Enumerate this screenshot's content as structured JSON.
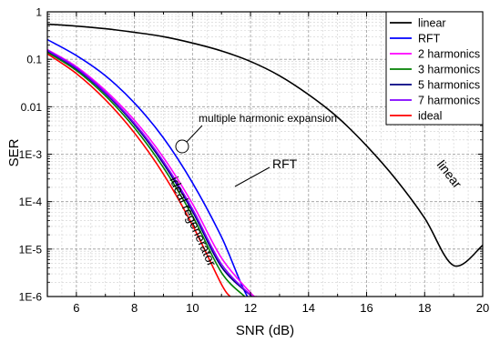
{
  "chart_data": {
    "type": "line",
    "xlabel": "SNR  (dB)",
    "ylabel": "SER",
    "xlim": [
      5,
      20
    ],
    "ylim": [
      1e-06,
      1
    ],
    "yscale": "log",
    "grid": true,
    "legend_position": "top-right",
    "x_ticks": [
      6,
      8,
      10,
      12,
      14,
      16,
      18,
      20
    ],
    "x_tick_labels": [
      "6",
      "8",
      "10",
      "12",
      "14",
      "16",
      "18",
      "20"
    ],
    "y_ticks": [
      1,
      0.1,
      0.01,
      0.001,
      0.0001,
      1e-05,
      1e-06
    ],
    "y_tick_labels": [
      "1",
      "0.1",
      "0.01",
      "1E-3",
      "1E-4",
      "1E-5",
      "1E-6"
    ],
    "series": [
      {
        "name": "linear",
        "color": "#000000",
        "x": [
          5,
          6,
          7,
          8,
          9,
          10,
          11,
          12,
          13,
          14,
          15,
          16,
          17,
          18,
          19,
          20
        ],
        "y": [
          0.55,
          0.5,
          0.44,
          0.37,
          0.3,
          0.22,
          0.15,
          0.09,
          0.045,
          0.018,
          0.006,
          0.0015,
          0.0003,
          4.5e-05,
          4.5e-06,
          1.2e-05
        ]
      },
      {
        "name": "RFT",
        "color": "#0000ff",
        "x": [
          5,
          6,
          7,
          8,
          9,
          10,
          11,
          12,
          12.7
        ],
        "y": [
          0.26,
          0.12,
          0.045,
          0.012,
          0.0022,
          0.00025,
          1.8e-05,
          8e-07,
          1e-06
        ]
      },
      {
        "name": "2 harmonics",
        "color": "#ff00ff",
        "x": [
          5,
          6,
          7,
          8,
          9,
          10,
          11,
          12,
          12.2
        ],
        "y": [
          0.16,
          0.07,
          0.022,
          0.0052,
          0.00085,
          9e-05,
          6.5e-06,
          1.2e-06,
          1e-06
        ]
      },
      {
        "name": "3 harmonics",
        "color": "#008000",
        "x": [
          5,
          6,
          7,
          8,
          9,
          10,
          11,
          11.8
        ],
        "y": [
          0.14,
          0.058,
          0.017,
          0.0036,
          0.00052,
          5e-05,
          3.2e-06,
          1e-06
        ]
      },
      {
        "name": "5 harmonics",
        "color": "#000080",
        "x": [
          5,
          6,
          7,
          8,
          9,
          10,
          11,
          12.05
        ],
        "y": [
          0.15,
          0.063,
          0.019,
          0.0042,
          0.00063,
          6.2e-05,
          4.2e-06,
          1e-06
        ]
      },
      {
        "name": "7 harmonics",
        "color": "#8000ff",
        "x": [
          5,
          6,
          7,
          8,
          9,
          10,
          11,
          12.05
        ],
        "y": [
          0.155,
          0.066,
          0.02,
          0.0045,
          0.0007,
          7e-05,
          4.8e-06,
          1e-06
        ]
      },
      {
        "name": "ideal",
        "color": "#ff0000",
        "x": [
          5,
          6,
          7,
          8,
          9,
          10,
          11,
          11.3
        ],
        "y": [
          0.13,
          0.05,
          0.014,
          0.0028,
          0.00038,
          3.2e-05,
          1.8e-06,
          1e-06
        ]
      }
    ],
    "annotations": [
      {
        "text": "multiple harmonic expansion"
      },
      {
        "text": "RFT"
      },
      {
        "text": "ideal regenerator"
      },
      {
        "text": "linear"
      }
    ]
  }
}
